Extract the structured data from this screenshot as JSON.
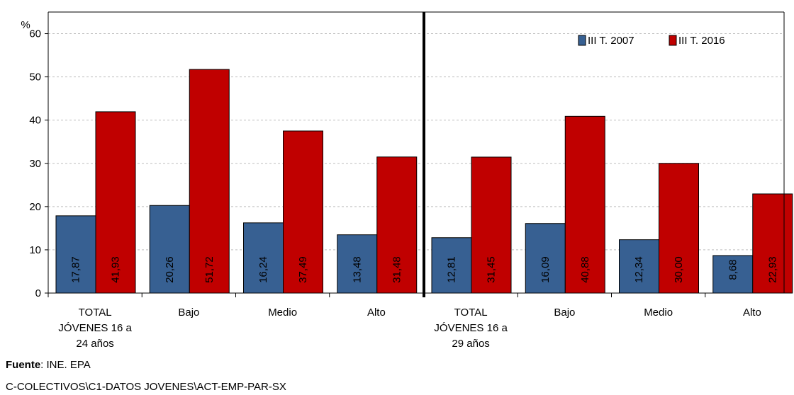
{
  "chart_data": {
    "type": "bar",
    "y_unit_label": "%",
    "ylim": [
      0,
      65
    ],
    "yticks": [
      0,
      10,
      20,
      30,
      40,
      50,
      60
    ],
    "grid": true,
    "legend_position": "top-right",
    "groups": [
      {
        "label_lines": [
          "TOTAL",
          "JÓVENES 16 a",
          "24 años"
        ],
        "categories": [
          "TOTAL JÓVENES 16 a 24 años",
          "Bajo",
          "Medio",
          "Alto"
        ],
        "category_labels": [
          "",
          "Bajo",
          "Medio",
          "Alto"
        ]
      },
      {
        "label_lines": [
          "TOTAL",
          "JÓVENES 16 a",
          "29 años"
        ],
        "categories": [
          "TOTAL JÓVENES 16 a 29 años",
          "Bajo",
          "Medio",
          "Alto"
        ],
        "category_labels": [
          "",
          "Bajo",
          "Medio",
          "Alto"
        ]
      }
    ],
    "series": [
      {
        "name": "III T. 2007",
        "color": "#376092",
        "values": [
          17.87,
          20.26,
          16.24,
          13.48,
          12.81,
          16.09,
          12.34,
          8.68
        ],
        "labels": [
          "17,87",
          "20,26",
          "16,24",
          "13,48",
          "12,81",
          "16,09",
          "12,34",
          "8,68"
        ]
      },
      {
        "name": "III T. 2016",
        "color": "#C00000",
        "values": [
          41.93,
          51.72,
          37.49,
          31.48,
          31.45,
          40.88,
          30.0,
          22.93
        ],
        "labels": [
          "41,93",
          "51,72",
          "37,49",
          "31,48",
          "31,45",
          "40,88",
          "30,00",
          "22,93"
        ]
      }
    ]
  },
  "footer": {
    "source_label": "Fuente",
    "source_text": ": INE. EPA",
    "path": "C-COLECTIVOS\\C1-DATOS JOVENES\\ACT-EMP-PAR-SX"
  }
}
